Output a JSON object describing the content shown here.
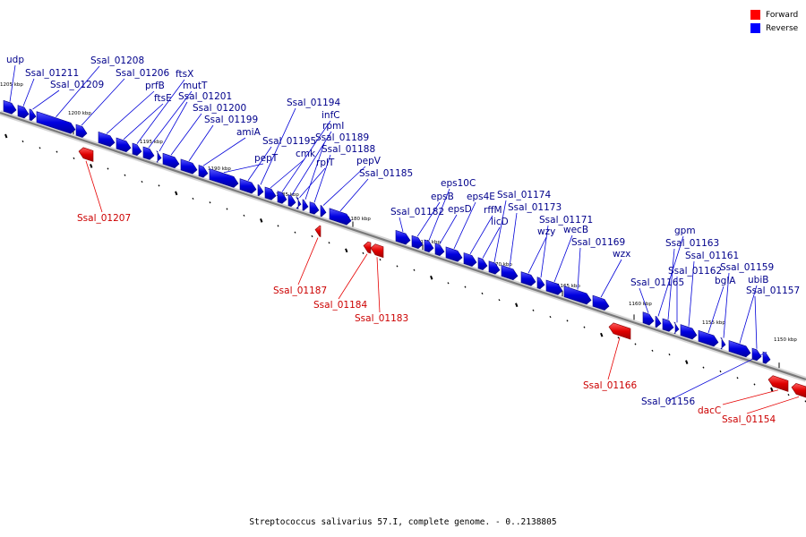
{
  "legend": {
    "forward_label": "Forward",
    "reverse_label": "Reverse",
    "forward_color": "#ff0000",
    "reverse_color": "#0000ff"
  },
  "caption": "Streptococcus salivarius 57.I, complete genome. - 0..2138805",
  "colors": {
    "forward": "#e60000",
    "reverse": "#0000d8",
    "forward_text": "#cc0000",
    "reverse_text": "#00008b",
    "backbone": "#888888"
  },
  "ticks": [
    "1205 kbp",
    "1200 kbp",
    "1195 kbp",
    "1190 kbp",
    "1185 kbp",
    "1180 kbp",
    "1175 kbp",
    "1170 kbp",
    "1165 kbp",
    "1160 kbp",
    "1155 kbp",
    "1150 kbp"
  ],
  "reverse_genes": [
    "udp",
    "Ssal_01211",
    "Ssal_01209",
    "Ssal_01208",
    "Ssal_01206",
    "prfB",
    "ftsE",
    "ftsX",
    "mutT",
    "Ssal_01201",
    "Ssal_01200",
    "Ssal_01199",
    "amiA",
    "pepT",
    "Ssal_01195",
    "Ssal_01194",
    "cmk",
    "infC",
    "rpmI",
    "rplT",
    "Ssal_01189",
    "Ssal_01188",
    "pepV",
    "Ssal_01185",
    "Ssal_01182",
    "epsB",
    "eps10C",
    "epsD",
    "eps4E",
    "rffM",
    "licD",
    "Ssal_01174",
    "Ssal_01173",
    "wzy",
    "Ssal_01171",
    "wecB",
    "Ssal_01169",
    "wzx",
    "Ssal_01165",
    "gpm",
    "Ssal_01163",
    "Ssal_01162",
    "Ssal_01161",
    "bglA",
    "Ssal_01159",
    "ubiB",
    "Ssal_01157",
    "Ssal_01156"
  ],
  "forward_genes": [
    "Ssal_01207",
    "Ssal_01187",
    "Ssal_01184",
    "Ssal_01183",
    "Ssal_01166",
    "dacC",
    "Ssal_01154"
  ]
}
